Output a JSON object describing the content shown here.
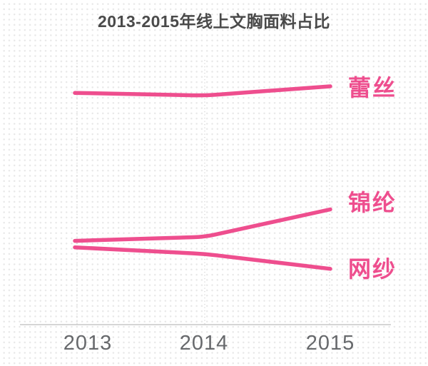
{
  "chart_data": {
    "type": "line",
    "title": "2013-2015年线上文胸面料占比",
    "categories": [
      "2013",
      "2014",
      "2015"
    ],
    "series": [
      {
        "name": "蕾丝",
        "values": [
          88.5,
          87.5,
          91.0
        ]
      },
      {
        "name": "锦纶",
        "values": [
          32.0,
          33.5,
          44.0
        ]
      },
      {
        "name": "网纱",
        "values": [
          29.5,
          27.0,
          21.3
        ]
      }
    ],
    "ylim": [
      0,
      100
    ],
    "y_axis_visible": false,
    "value_note": "y-axis is unlabeled in the chart; values are relative proportions estimated from line positions",
    "legend_position": "labels at right end of each line",
    "grid": "vertical dotted gridlines at each year"
  },
  "colors": {
    "accent_pink": "#ee4e8e",
    "title_text": "#4a4a4a",
    "axis_text": "#67696c",
    "gridline": "#c9c9c9",
    "axis_line": "#bcbcbc",
    "background_dot": "#e8e8e8"
  }
}
